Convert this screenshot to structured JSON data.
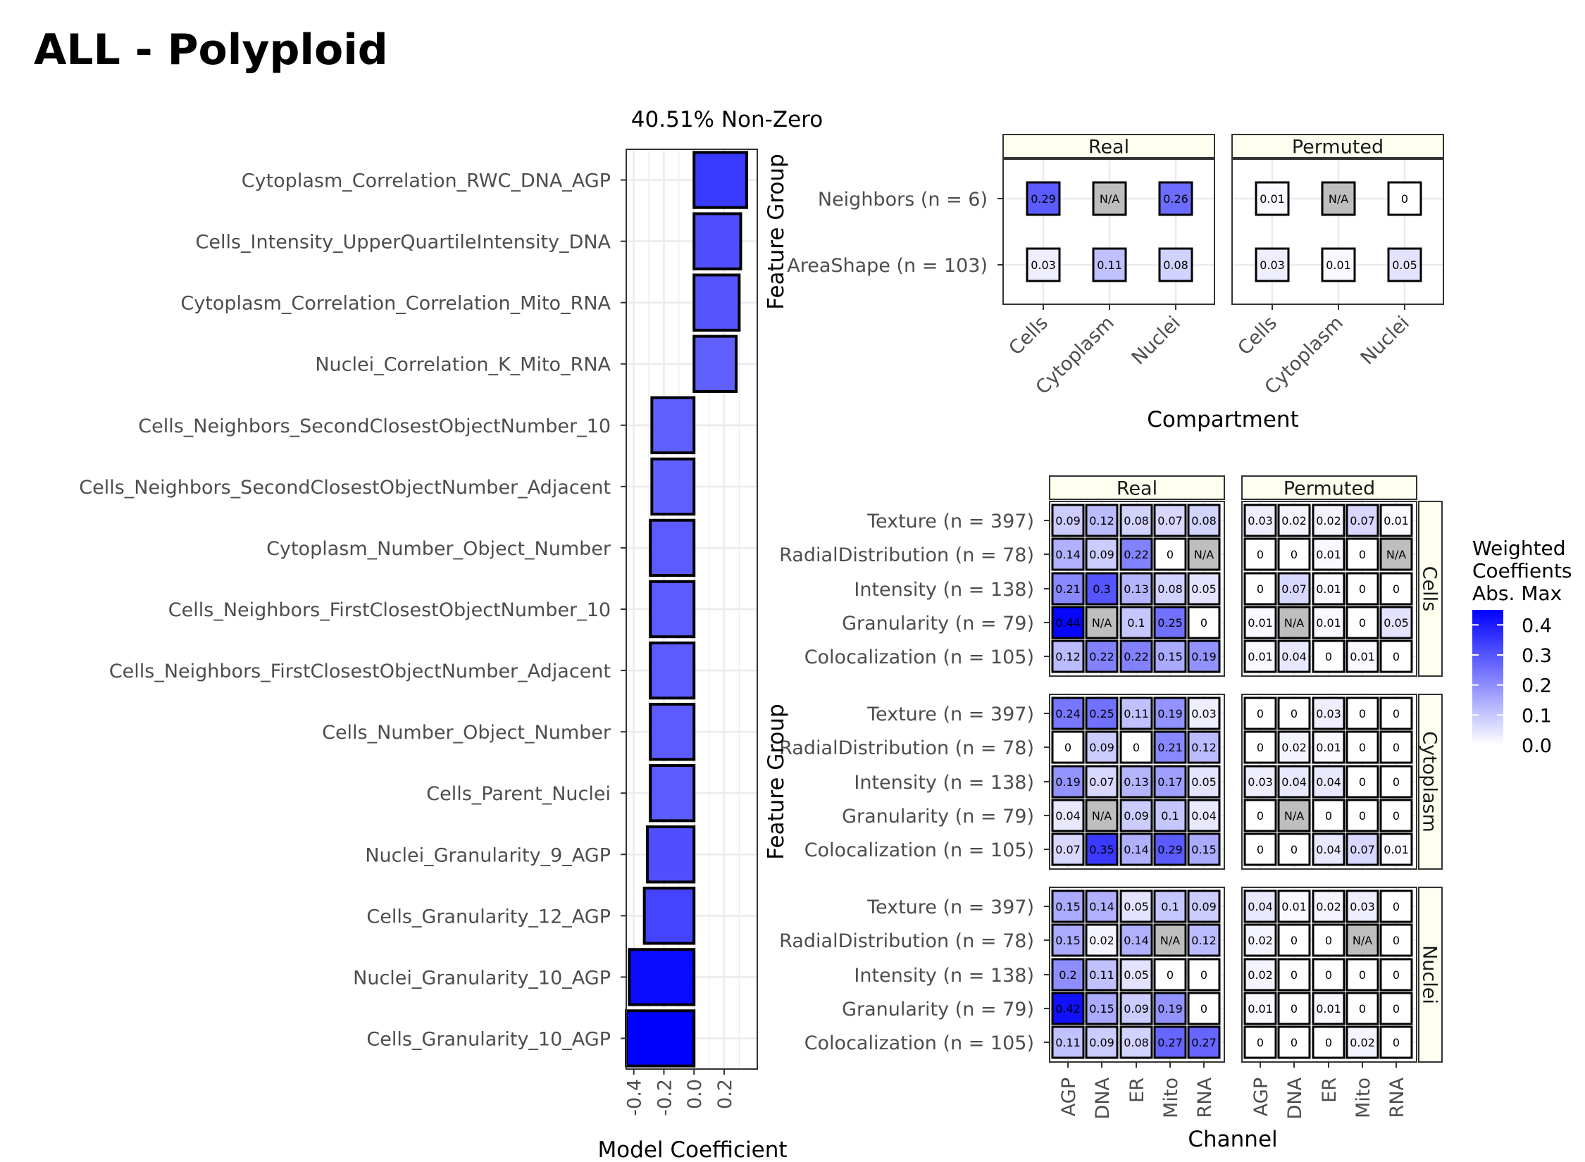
{
  "page_title": "ALL - Polyploid",
  "colors": {
    "low": "#ffffff",
    "high": "#0000ff",
    "na": "#bebebe",
    "strip": "#fffff0",
    "grid": "#ebebeb"
  },
  "chart_data": [
    {
      "type": "bar",
      "orientation": "horizontal",
      "title": "40.51% Non-Zero",
      "xlabel": "Model Coefficient",
      "xlim": [
        -0.45,
        0.42
      ],
      "xticks": [
        "-0.4",
        "-0.2",
        "0.0",
        "0.2"
      ],
      "categories": [
        "Cytoplasm_Correlation_RWC_DNA_AGP",
        "Cells_Intensity_UpperQuartileIntensity_DNA",
        "Cytoplasm_Correlation_Correlation_Mito_RNA",
        "Nuclei_Correlation_K_Mito_RNA",
        "Cells_Neighbors_SecondClosestObjectNumber_10",
        "Cells_Neighbors_SecondClosestObjectNumber_Adjacent",
        "Cytoplasm_Number_Object_Number",
        "Cells_Neighbors_FirstClosestObjectNumber_10",
        "Cells_Neighbors_FirstClosestObjectNumber_Adjacent",
        "Cells_Number_Object_Number",
        "Cells_Parent_Nuclei",
        "Nuclei_Granularity_9_AGP",
        "Cells_Granularity_12_AGP",
        "Nuclei_Granularity_10_AGP",
        "Cells_Granularity_10_AGP"
      ],
      "values": [
        0.35,
        0.31,
        0.3,
        0.28,
        -0.28,
        -0.28,
        -0.29,
        -0.29,
        -0.29,
        -0.29,
        -0.29,
        -0.31,
        -0.33,
        -0.43,
        -0.45
      ]
    },
    {
      "type": "heatmap",
      "xlabel": "Compartment",
      "ylabel": "Feature Group",
      "panels": [
        "Real",
        "Permuted"
      ],
      "columns": [
        "Cells",
        "Cytoplasm",
        "Nuclei"
      ],
      "rows": [
        "Neighbors (n = 6)",
        "AreaShape (n = 103)"
      ],
      "values": {
        "Real": [
          [
            "0.29",
            "N/A",
            "0.26"
          ],
          [
            "0.03",
            "0.11",
            "0.08"
          ]
        ],
        "Permuted": [
          [
            "0.01",
            "N/A",
            "0"
          ],
          [
            "0.03",
            "0.01",
            "0.05"
          ]
        ]
      }
    },
    {
      "type": "heatmap",
      "xlabel": "Channel",
      "ylabel": "Feature Group",
      "panels": [
        "Real",
        "Permuted"
      ],
      "facets": [
        "Cells",
        "Cytoplasm",
        "Nuclei"
      ],
      "columns": [
        "AGP",
        "DNA",
        "ER",
        "Mito",
        "RNA"
      ],
      "rows": [
        "Texture (n = 397)",
        "RadialDistribution (n = 78)",
        "Intensity (n = 138)",
        "Granularity (n = 79)",
        "Colocalization (n = 105)"
      ],
      "values": {
        "Cells": {
          "Real": [
            [
              "0.09",
              "0.12",
              "0.08",
              "0.07",
              "0.08"
            ],
            [
              "0.14",
              "0.09",
              "0.22",
              "0",
              "N/A"
            ],
            [
              "0.21",
              "0.3",
              "0.13",
              "0.08",
              "0.05"
            ],
            [
              "0.44",
              "N/A",
              "0.1",
              "0.25",
              "0"
            ],
            [
              "0.12",
              "0.22",
              "0.22",
              "0.15",
              "0.19"
            ]
          ],
          "Permuted": [
            [
              "0.03",
              "0.02",
              "0.02",
              "0.07",
              "0.01"
            ],
            [
              "0",
              "0",
              "0.01",
              "0",
              "N/A"
            ],
            [
              "0",
              "0.07",
              "0.01",
              "0",
              "0"
            ],
            [
              "0.01",
              "N/A",
              "0.01",
              "0",
              "0.05"
            ],
            [
              "0.01",
              "0.04",
              "0",
              "0.01",
              "0"
            ]
          ]
        },
        "Cytoplasm": {
          "Real": [
            [
              "0.24",
              "0.25",
              "0.11",
              "0.19",
              "0.03"
            ],
            [
              "0",
              "0.09",
              "0",
              "0.21",
              "0.12"
            ],
            [
              "0.19",
              "0.07",
              "0.13",
              "0.17",
              "0.05"
            ],
            [
              "0.04",
              "N/A",
              "0.09",
              "0.1",
              "0.04"
            ],
            [
              "0.07",
              "0.35",
              "0.14",
              "0.29",
              "0.15"
            ]
          ],
          "Permuted": [
            [
              "0",
              "0",
              "0.03",
              "0",
              "0"
            ],
            [
              "0",
              "0.02",
              "0.01",
              "0",
              "0"
            ],
            [
              "0.03",
              "0.04",
              "0.04",
              "0",
              "0"
            ],
            [
              "0",
              "N/A",
              "0",
              "0",
              "0"
            ],
            [
              "0",
              "0",
              "0.04",
              "0.07",
              "0.01"
            ]
          ]
        },
        "Nuclei": {
          "Real": [
            [
              "0.15",
              "0.14",
              "0.05",
              "0.1",
              "0.09"
            ],
            [
              "0.15",
              "0.02",
              "0.14",
              "N/A",
              "0.12"
            ],
            [
              "0.2",
              "0.11",
              "0.05",
              "0",
              "0"
            ],
            [
              "0.42",
              "0.15",
              "0.09",
              "0.19",
              "0"
            ],
            [
              "0.11",
              "0.09",
              "0.08",
              "0.27",
              "0.27"
            ]
          ],
          "Permuted": [
            [
              "0.04",
              "0.01",
              "0.02",
              "0.03",
              "0"
            ],
            [
              "0.02",
              "0",
              "0",
              "N/A",
              "0"
            ],
            [
              "0.02",
              "0",
              "0",
              "0",
              "0"
            ],
            [
              "0.01",
              "0",
              "0.01",
              "0",
              "0"
            ],
            [
              "0",
              "0",
              "0",
              "0.02",
              "0"
            ]
          ]
        }
      },
      "legend": {
        "title": [
          "Weighted",
          "Coeffients",
          "Abs. Max"
        ],
        "ticks": [
          "0.4",
          "0.3",
          "0.2",
          "0.1",
          "0.0"
        ],
        "range": [
          0,
          0.45
        ],
        "position": "right"
      }
    }
  ]
}
